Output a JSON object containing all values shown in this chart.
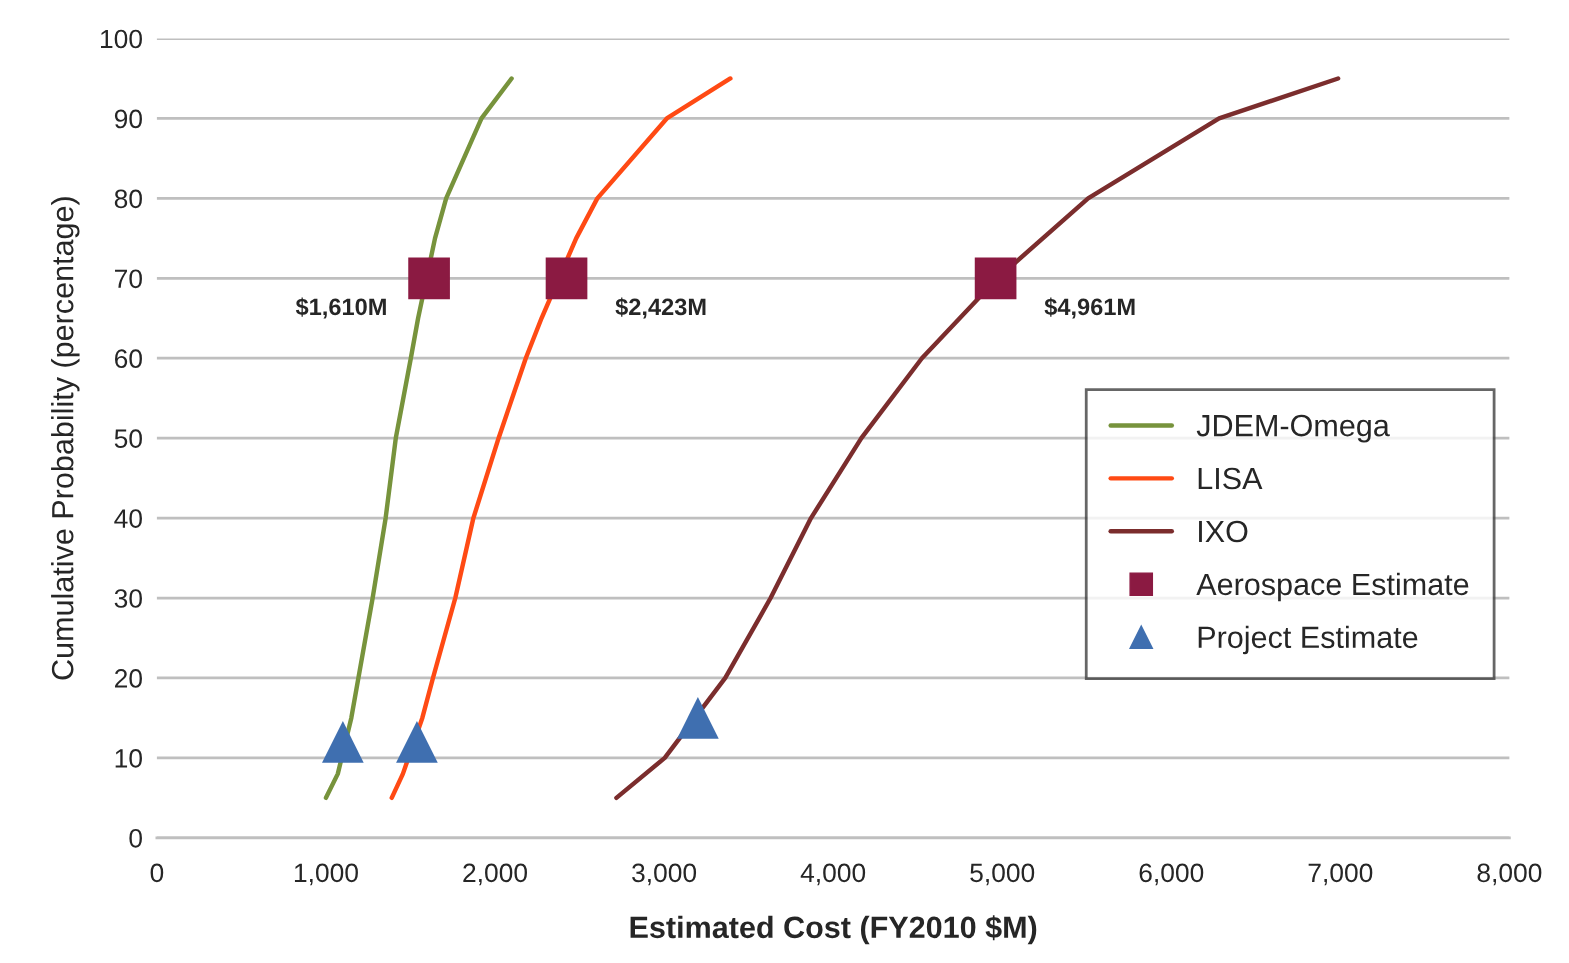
{
  "chart_data": {
    "type": "line",
    "xlabel": "Estimated Cost (FY2010 $M)",
    "ylabel": "Cumulative Probability (percentage)",
    "xlim": [
      0,
      8000
    ],
    "xticks": [
      0,
      {
        "value": 1000,
        "label": "1,000"
      },
      {
        "value": 2000,
        "label": "2,000"
      },
      {
        "value": 3000,
        "label": "3,000"
      },
      {
        "value": 4000,
        "label": "4,000"
      },
      {
        "value": 5000,
        "label": "5,000"
      },
      {
        "value": 6000,
        "label": "6,000"
      },
      {
        "value": 7000,
        "label": "7,000"
      },
      {
        "value": 8000,
        "label": "8,000"
      }
    ],
    "ylim": [
      0,
      100
    ],
    "yticks": [
      0,
      10,
      20,
      30,
      40,
      50,
      60,
      70,
      80,
      90,
      100
    ],
    "grid": "y",
    "legend": "right",
    "series": [
      {
        "name": "JDEM-Omega",
        "color": "#77933c",
        "x": [
          1000,
          1070,
          1150,
          1192,
          1276,
          1353,
          1413,
          1502,
          1545,
          1645,
          1711,
          1920,
          2098
        ],
        "values": [
          5,
          8,
          15,
          20,
          30,
          40,
          50,
          60,
          65,
          75,
          80,
          90,
          95
        ]
      },
      {
        "name": "LISA",
        "color": "#ff4a14",
        "x": [
          1389,
          1455,
          1570,
          1633,
          1765,
          1872,
          2021,
          2182,
          2275,
          2480,
          2605,
          3016,
          3392
        ],
        "values": [
          5,
          8,
          15,
          20,
          30,
          40,
          50,
          60,
          65,
          75,
          80,
          90,
          95
        ]
      },
      {
        "name": "IXO",
        "color": "#7b2d2d",
        "x": [
          2718,
          3004,
          3362,
          3630,
          3869,
          4167,
          4525,
          4972,
          5508,
          6283,
          6987
        ],
        "values": [
          5,
          10,
          20,
          30,
          40,
          50,
          60,
          70,
          80,
          90,
          95
        ]
      },
      {
        "name": "Aerospace Estimate",
        "type": "scatter",
        "marker": "square",
        "color": "#8b1a42",
        "x": [
          1610,
          2423,
          4961
        ],
        "values": [
          70,
          70,
          70
        ]
      },
      {
        "name": "Project Estimate",
        "type": "scatter",
        "marker": "triangle",
        "color": "#3f6fb0",
        "x": [
          1100,
          1538,
          3200
        ],
        "values": [
          12,
          12,
          15
        ]
      }
    ],
    "annotations": [
      {
        "text": "$1,610M",
        "x": 1610,
        "y": 70
      },
      {
        "text": "$2,423M",
        "x": 2423,
        "y": 70
      },
      {
        "text": "$4,961M",
        "x": 4961,
        "y": 70
      }
    ]
  }
}
